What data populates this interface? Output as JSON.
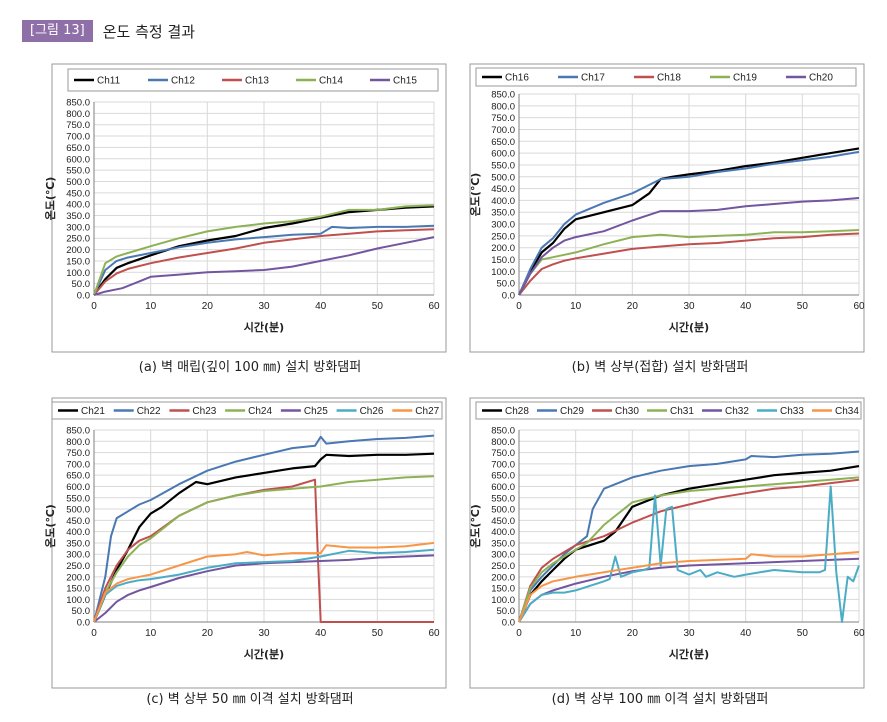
{
  "header": {
    "badge": "[그림 13]",
    "title": "온도 측정 결과"
  },
  "chart_data": [
    {
      "type": "line",
      "caption": "(a) 벽 매립(깊이 100 ㎜) 설치 방화댐퍼",
      "xlabel": "시간(분)",
      "ylabel": "온도(℃)",
      "xlim": [
        0,
        60
      ],
      "ylim": [
        0,
        850
      ],
      "x_ticks": [
        0,
        10,
        20,
        30,
        40,
        50,
        60
      ],
      "y_ticks": [
        "0.0",
        "50.0",
        "100.0",
        "150.0",
        "200.0",
        "250.0",
        "300.0",
        "350.0",
        "400.0",
        "450.0",
        "500.0",
        "550.0",
        "600.0",
        "650.0",
        "700.0",
        "750.0",
        "800.0",
        "850.0"
      ],
      "grid": true,
      "legend_position": "top",
      "series": [
        {
          "name": "Ch11",
          "color": "#000000",
          "x": [
            0,
            2,
            4,
            6,
            10,
            15,
            20,
            25,
            30,
            35,
            40,
            45,
            50,
            55,
            60
          ],
          "y": [
            0,
            70,
            120,
            140,
            175,
            215,
            240,
            260,
            295,
            315,
            340,
            365,
            375,
            385,
            390
          ]
        },
        {
          "name": "Ch12",
          "color": "#4a78b3",
          "x": [
            0,
            2,
            4,
            6,
            10,
            15,
            20,
            25,
            30,
            35,
            40,
            42,
            45,
            50,
            55,
            60
          ],
          "y": [
            0,
            110,
            150,
            165,
            185,
            210,
            230,
            245,
            255,
            265,
            270,
            300,
            295,
            300,
            300,
            305
          ]
        },
        {
          "name": "Ch13",
          "color": "#c0504d",
          "x": [
            0,
            2,
            4,
            6,
            10,
            15,
            20,
            25,
            30,
            35,
            40,
            45,
            50,
            55,
            60
          ],
          "y": [
            0,
            60,
            95,
            115,
            140,
            165,
            185,
            205,
            230,
            245,
            260,
            270,
            280,
            285,
            290
          ]
        },
        {
          "name": "Ch14",
          "color": "#8db255",
          "x": [
            0,
            2,
            4,
            6,
            10,
            15,
            20,
            25,
            30,
            35,
            40,
            45,
            50,
            55,
            60
          ],
          "y": [
            0,
            140,
            170,
            185,
            215,
            250,
            280,
            300,
            315,
            325,
            345,
            375,
            375,
            390,
            395
          ]
        },
        {
          "name": "Ch15",
          "color": "#7355a0",
          "x": [
            0,
            2,
            5,
            8,
            10,
            15,
            20,
            25,
            30,
            35,
            40,
            45,
            50,
            55,
            60
          ],
          "y": [
            0,
            15,
            30,
            60,
            80,
            90,
            100,
            105,
            110,
            125,
            150,
            175,
            205,
            230,
            255
          ]
        }
      ]
    },
    {
      "type": "line",
      "caption": "(b) 벽 상부(접합) 설치 방화댐퍼",
      "xlabel": "시간(분)",
      "ylabel": "온도(℃)",
      "xlim": [
        0,
        60
      ],
      "ylim": [
        0,
        850
      ],
      "x_ticks": [
        0,
        10,
        20,
        30,
        40,
        50,
        60
      ],
      "y_ticks": [
        "0.0",
        "50.0",
        "100.0",
        "150.0",
        "200.0",
        "250.0",
        "300.0",
        "350.0",
        "400.0",
        "450.0",
        "500.0",
        "550.0",
        "600.0",
        "650.0",
        "700.0",
        "750.0",
        "800.0",
        "850.0"
      ],
      "grid": true,
      "legend_position": "top",
      "series": [
        {
          "name": "Ch16",
          "color": "#000000",
          "x": [
            0,
            2,
            4,
            6,
            8,
            10,
            15,
            20,
            23,
            25,
            27,
            30,
            35,
            40,
            45,
            50,
            55,
            60
          ],
          "y": [
            0,
            100,
            180,
            220,
            280,
            320,
            350,
            380,
            430,
            490,
            500,
            510,
            525,
            545,
            560,
            580,
            600,
            620
          ]
        },
        {
          "name": "Ch17",
          "color": "#4a78b3",
          "x": [
            0,
            2,
            4,
            6,
            8,
            10,
            15,
            20,
            25,
            30,
            35,
            40,
            45,
            50,
            55,
            60
          ],
          "y": [
            0,
            110,
            200,
            240,
            300,
            340,
            390,
            430,
            490,
            500,
            520,
            535,
            555,
            570,
            585,
            605
          ]
        },
        {
          "name": "Ch18",
          "color": "#c0504d",
          "x": [
            0,
            2,
            4,
            6,
            8,
            10,
            15,
            20,
            25,
            30,
            35,
            40,
            45,
            50,
            55,
            60
          ],
          "y": [
            0,
            60,
            110,
            130,
            145,
            155,
            175,
            195,
            205,
            215,
            220,
            230,
            240,
            245,
            255,
            260
          ]
        },
        {
          "name": "Ch19",
          "color": "#8db255",
          "x": [
            0,
            2,
            4,
            6,
            8,
            10,
            15,
            20,
            25,
            30,
            35,
            40,
            45,
            50,
            55,
            60
          ],
          "y": [
            0,
            90,
            150,
            160,
            170,
            180,
            215,
            245,
            255,
            245,
            250,
            255,
            265,
            265,
            270,
            275
          ]
        },
        {
          "name": "Ch20",
          "color": "#7355a0",
          "x": [
            0,
            2,
            4,
            6,
            8,
            10,
            15,
            20,
            25,
            30,
            35,
            40,
            45,
            50,
            55,
            60
          ],
          "y": [
            0,
            90,
            160,
            200,
            230,
            245,
            270,
            315,
            355,
            355,
            360,
            375,
            385,
            395,
            400,
            410
          ]
        }
      ]
    },
    {
      "type": "line",
      "caption": "(c) 벽 상부 50 ㎜ 이격 설치 방화댐퍼",
      "xlabel": "시간(분)",
      "ylabel": "온도(℃)",
      "xlim": [
        0,
        60
      ],
      "ylim": [
        0,
        850
      ],
      "x_ticks": [
        0,
        10,
        20,
        30,
        40,
        50,
        60
      ],
      "y_ticks": [
        "0.0",
        "50.0",
        "100.0",
        "150.0",
        "200.0",
        "250.0",
        "300.0",
        "350.0",
        "400.0",
        "450.0",
        "500.0",
        "550.0",
        "600.0",
        "650.0",
        "700.0",
        "750.0",
        "800.0",
        "850.0"
      ],
      "grid": true,
      "legend_position": "top",
      "series": [
        {
          "name": "Ch21",
          "color": "#000000",
          "x": [
            0,
            2,
            4,
            6,
            8,
            10,
            12,
            15,
            18,
            20,
            25,
            30,
            35,
            39,
            40,
            41,
            45,
            50,
            55,
            60
          ],
          "y": [
            0,
            120,
            230,
            320,
            420,
            480,
            510,
            570,
            620,
            610,
            640,
            660,
            680,
            690,
            720,
            740,
            735,
            740,
            740,
            745
          ]
        },
        {
          "name": "Ch22",
          "color": "#4a78b3",
          "x": [
            0,
            2,
            3,
            4,
            6,
            8,
            10,
            15,
            20,
            25,
            30,
            35,
            39,
            40,
            41,
            45,
            50,
            55,
            60
          ],
          "y": [
            0,
            200,
            380,
            460,
            490,
            520,
            540,
            610,
            670,
            710,
            740,
            770,
            780,
            820,
            790,
            800,
            810,
            815,
            825
          ]
        },
        {
          "name": "Ch23",
          "color": "#c0504d",
          "x": [
            0,
            2,
            4,
            6,
            8,
            10,
            15,
            20,
            25,
            30,
            35,
            39,
            39.5,
            40,
            45,
            50,
            55,
            60
          ],
          "y": [
            0,
            150,
            250,
            320,
            360,
            380,
            470,
            530,
            560,
            585,
            600,
            630,
            300,
            0,
            0,
            0,
            0,
            0
          ]
        },
        {
          "name": "Ch24",
          "color": "#8db255",
          "x": [
            0,
            2,
            4,
            6,
            8,
            10,
            15,
            20,
            25,
            30,
            35,
            40,
            45,
            50,
            55,
            60
          ],
          "y": [
            0,
            130,
            220,
            290,
            340,
            370,
            470,
            530,
            560,
            580,
            590,
            600,
            620,
            630,
            640,
            645
          ]
        },
        {
          "name": "Ch25",
          "color": "#7355a0",
          "x": [
            0,
            2,
            4,
            6,
            8,
            10,
            15,
            20,
            25,
            30,
            35,
            40,
            45,
            50,
            55,
            60
          ],
          "y": [
            0,
            40,
            90,
            120,
            140,
            155,
            195,
            225,
            250,
            260,
            265,
            270,
            275,
            285,
            290,
            295
          ]
        },
        {
          "name": "Ch26",
          "color": "#4bacc6",
          "x": [
            0,
            2,
            4,
            6,
            8,
            10,
            15,
            20,
            25,
            30,
            35,
            40,
            45,
            50,
            55,
            60
          ],
          "y": [
            0,
            120,
            160,
            175,
            185,
            190,
            210,
            240,
            260,
            265,
            270,
            290,
            315,
            305,
            310,
            320
          ]
        },
        {
          "name": "Ch27",
          "color": "#f79646",
          "x": [
            0,
            2,
            4,
            6,
            8,
            10,
            15,
            20,
            25,
            27,
            30,
            35,
            40,
            41,
            45,
            50,
            55,
            60
          ],
          "y": [
            0,
            130,
            170,
            190,
            200,
            210,
            250,
            290,
            300,
            310,
            295,
            305,
            305,
            340,
            330,
            330,
            335,
            350
          ]
        }
      ]
    },
    {
      "type": "line",
      "caption": "(d) 벽 상부 100 ㎜ 이격 설치 방화댐퍼",
      "xlabel": "시간(분)",
      "ylabel": "온도(℃)",
      "xlim": [
        0,
        60
      ],
      "ylim": [
        0,
        850
      ],
      "x_ticks": [
        0,
        10,
        20,
        30,
        40,
        50,
        60
      ],
      "y_ticks": [
        "0.0",
        "50.0",
        "100.0",
        "150.0",
        "200.0",
        "250.0",
        "300.0",
        "350.0",
        "400.0",
        "450.0",
        "500.0",
        "550.0",
        "600.0",
        "650.0",
        "700.0",
        "750.0",
        "800.0",
        "850.0"
      ],
      "grid": true,
      "legend_position": "top",
      "series": [
        {
          "name": "Ch28",
          "color": "#000000",
          "x": [
            0,
            2,
            4,
            6,
            8,
            10,
            15,
            17,
            20,
            25,
            30,
            35,
            40,
            45,
            50,
            55,
            60
          ],
          "y": [
            0,
            120,
            180,
            230,
            280,
            320,
            360,
            400,
            510,
            560,
            590,
            610,
            630,
            650,
            660,
            670,
            690
          ]
        },
        {
          "name": "Ch29",
          "color": "#4a78b3",
          "x": [
            0,
            2,
            4,
            6,
            8,
            10,
            12,
            13,
            15,
            20,
            25,
            30,
            35,
            40,
            41,
            45,
            50,
            55,
            60
          ],
          "y": [
            0,
            140,
            200,
            250,
            300,
            340,
            380,
            500,
            590,
            640,
            670,
            690,
            700,
            720,
            735,
            730,
            740,
            745,
            755
          ]
        },
        {
          "name": "Ch30",
          "color": "#c0504d",
          "x": [
            0,
            2,
            4,
            6,
            8,
            10,
            15,
            20,
            25,
            30,
            35,
            40,
            45,
            50,
            55,
            60
          ],
          "y": [
            0,
            160,
            240,
            280,
            310,
            340,
            380,
            440,
            490,
            520,
            550,
            570,
            590,
            600,
            615,
            630
          ]
        },
        {
          "name": "Ch31",
          "color": "#8db255",
          "x": [
            0,
            2,
            4,
            6,
            8,
            10,
            12,
            15,
            20,
            25,
            30,
            35,
            40,
            45,
            50,
            55,
            60
          ],
          "y": [
            0,
            150,
            220,
            260,
            290,
            320,
            350,
            430,
            530,
            560,
            580,
            590,
            600,
            610,
            620,
            630,
            640
          ]
        },
        {
          "name": "Ch32",
          "color": "#7355a0",
          "x": [
            0,
            2,
            4,
            6,
            8,
            10,
            15,
            20,
            25,
            30,
            35,
            40,
            45,
            50,
            55,
            60
          ],
          "y": [
            0,
            80,
            120,
            140,
            155,
            170,
            200,
            225,
            240,
            250,
            255,
            260,
            265,
            270,
            275,
            280
          ]
        },
        {
          "name": "Ch33",
          "color": "#4bacc6",
          "x": [
            0,
            2,
            4,
            6,
            8,
            10,
            15,
            16,
            17,
            18,
            20,
            22,
            23,
            24,
            25,
            26,
            27,
            28,
            30,
            32,
            33,
            35,
            38,
            40,
            45,
            50,
            53,
            54,
            55,
            56,
            57,
            58,
            59,
            60
          ],
          "y": [
            0,
            80,
            120,
            130,
            130,
            140,
            180,
            190,
            290,
            200,
            220,
            230,
            240,
            560,
            250,
            500,
            510,
            230,
            210,
            230,
            200,
            220,
            200,
            210,
            230,
            220,
            220,
            230,
            600,
            220,
            0,
            200,
            180,
            250
          ]
        },
        {
          "name": "Ch34",
          "color": "#f79646",
          "x": [
            0,
            2,
            4,
            6,
            8,
            10,
            15,
            20,
            25,
            30,
            35,
            40,
            41,
            45,
            50,
            55,
            60
          ],
          "y": [
            0,
            120,
            160,
            180,
            190,
            200,
            220,
            240,
            260,
            270,
            275,
            280,
            300,
            290,
            290,
            300,
            310
          ]
        }
      ]
    }
  ]
}
